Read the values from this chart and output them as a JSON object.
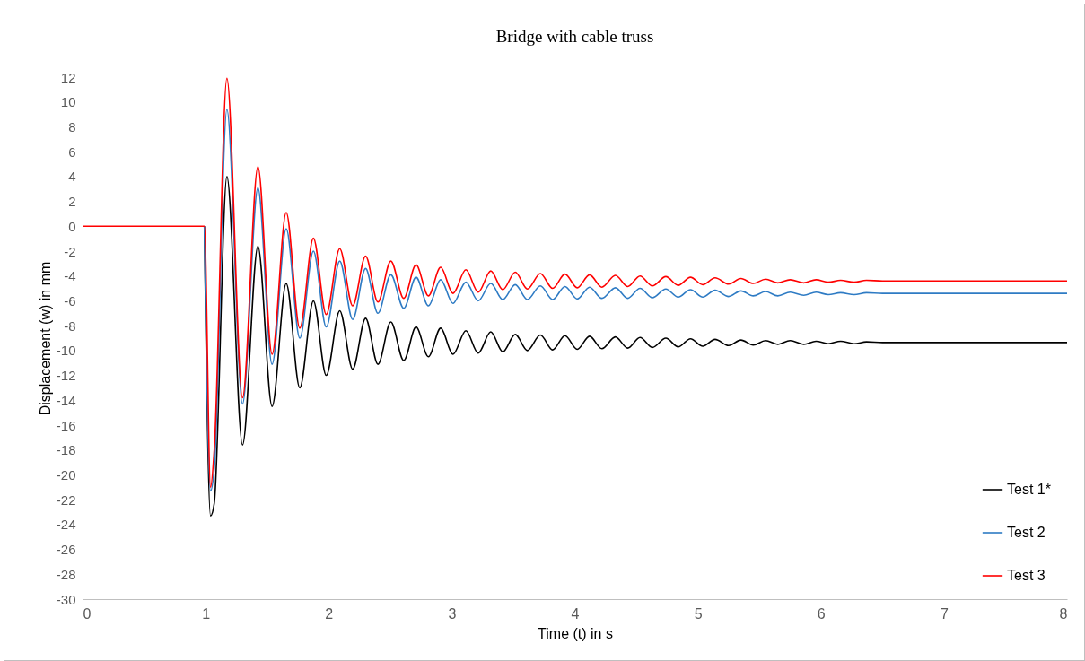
{
  "chart_data": {
    "type": "line",
    "title": "Bridge with cable truss",
    "xlabel": "Time (t) in s",
    "ylabel": "Displacement (w) in mm",
    "x": [
      0,
      0.5,
      0.99,
      1.04,
      1.07,
      1.173,
      1.3,
      1.425,
      1.54,
      1.655,
      1.765,
      1.876,
      1.98,
      2.09,
      2.195,
      2.3,
      2.4,
      2.505,
      2.61,
      2.71,
      2.81,
      2.91,
      3.01,
      3.115,
      3.215,
      3.317,
      3.415,
      3.516,
      3.615,
      3.72,
      3.82,
      3.92,
      4.02,
      4.12,
      4.22,
      4.33,
      4.43,
      4.53,
      4.63,
      4.74,
      4.84,
      4.94,
      5.04,
      5.14,
      5.25,
      5.35,
      5.45,
      5.55,
      5.65,
      5.75,
      5.86,
      5.96,
      6.06,
      6.16,
      6.27,
      6.37,
      6.5,
      7,
      7.5,
      8
    ],
    "series": [
      {
        "name": "Test 1*",
        "color": "#000000",
        "values": [
          null,
          null,
          0,
          -23.3,
          -22.3,
          4.0,
          -17.6,
          -1.6,
          -14.5,
          -4.6,
          -13.0,
          -6.0,
          -12.0,
          -6.8,
          -11.5,
          -7.4,
          -11.1,
          -7.7,
          -10.8,
          -8.1,
          -10.5,
          -8.2,
          -10.3,
          -8.4,
          -10.2,
          -8.5,
          -10.1,
          -8.7,
          -10.0,
          -8.75,
          -9.95,
          -8.8,
          -9.9,
          -8.85,
          -9.85,
          -8.9,
          -9.8,
          -8.95,
          -9.75,
          -9.0,
          -9.7,
          -9.05,
          -9.65,
          -9.1,
          -9.6,
          -9.15,
          -9.55,
          -9.2,
          -9.5,
          -9.2,
          -9.5,
          -9.25,
          -9.45,
          -9.25,
          -9.45,
          -9.3,
          -9.35,
          -9.35,
          -9.35,
          -9.35
        ]
      },
      {
        "name": "Test 2",
        "color": "#2e7bc4",
        "values": [
          null,
          null,
          0,
          -21.3,
          -19.5,
          9.4,
          -14.3,
          3.1,
          -11.1,
          -0.2,
          -9.0,
          -2.0,
          -8.1,
          -2.8,
          -7.5,
          -3.4,
          -7.0,
          -3.9,
          -6.6,
          -4.1,
          -6.4,
          -4.3,
          -6.2,
          -4.5,
          -6.0,
          -4.6,
          -5.9,
          -4.7,
          -5.9,
          -4.8,
          -5.9,
          -4.85,
          -5.85,
          -4.9,
          -5.8,
          -4.95,
          -5.8,
          -5.0,
          -5.75,
          -5.05,
          -5.7,
          -5.1,
          -5.7,
          -5.15,
          -5.65,
          -5.2,
          -5.6,
          -5.25,
          -5.6,
          -5.3,
          -5.55,
          -5.3,
          -5.5,
          -5.35,
          -5.5,
          -5.35,
          -5.4,
          -5.4,
          -5.4,
          -5.4
        ]
      },
      {
        "name": "Test 3",
        "color": "#ff0000",
        "values": [
          0,
          0,
          0,
          -21.0,
          -18.0,
          11.9,
          -13.8,
          4.8,
          -10.3,
          1.1,
          -8.2,
          -0.96,
          -7.1,
          -1.8,
          -6.4,
          -2.4,
          -6.1,
          -2.8,
          -5.8,
          -3.1,
          -5.6,
          -3.3,
          -5.4,
          -3.5,
          -5.3,
          -3.6,
          -5.1,
          -3.7,
          -5.05,
          -3.8,
          -5.0,
          -3.85,
          -4.95,
          -3.9,
          -4.9,
          -3.95,
          -4.85,
          -4.0,
          -4.8,
          -4.05,
          -4.75,
          -4.1,
          -4.7,
          -4.15,
          -4.65,
          -4.2,
          -4.6,
          -4.25,
          -4.55,
          -4.3,
          -4.55,
          -4.3,
          -4.5,
          -4.35,
          -4.5,
          -4.35,
          -4.4,
          -4.4,
          -4.4,
          -4.4
        ]
      }
    ],
    "xlim": [
      0,
      8
    ],
    "xticks": [
      0,
      1,
      2,
      3,
      4,
      5,
      6,
      7,
      8
    ],
    "ylim": [
      -30,
      12
    ],
    "yticks": [
      -30,
      -28,
      -26,
      -24,
      -22,
      -20,
      -18,
      -16,
      -14,
      -12,
      -10,
      -8,
      -6,
      -4,
      -2,
      0,
      2,
      4,
      6,
      8,
      10,
      12
    ],
    "grid": false,
    "legend": "bottom right",
    "marker": "none",
    "line_style": "solid"
  }
}
